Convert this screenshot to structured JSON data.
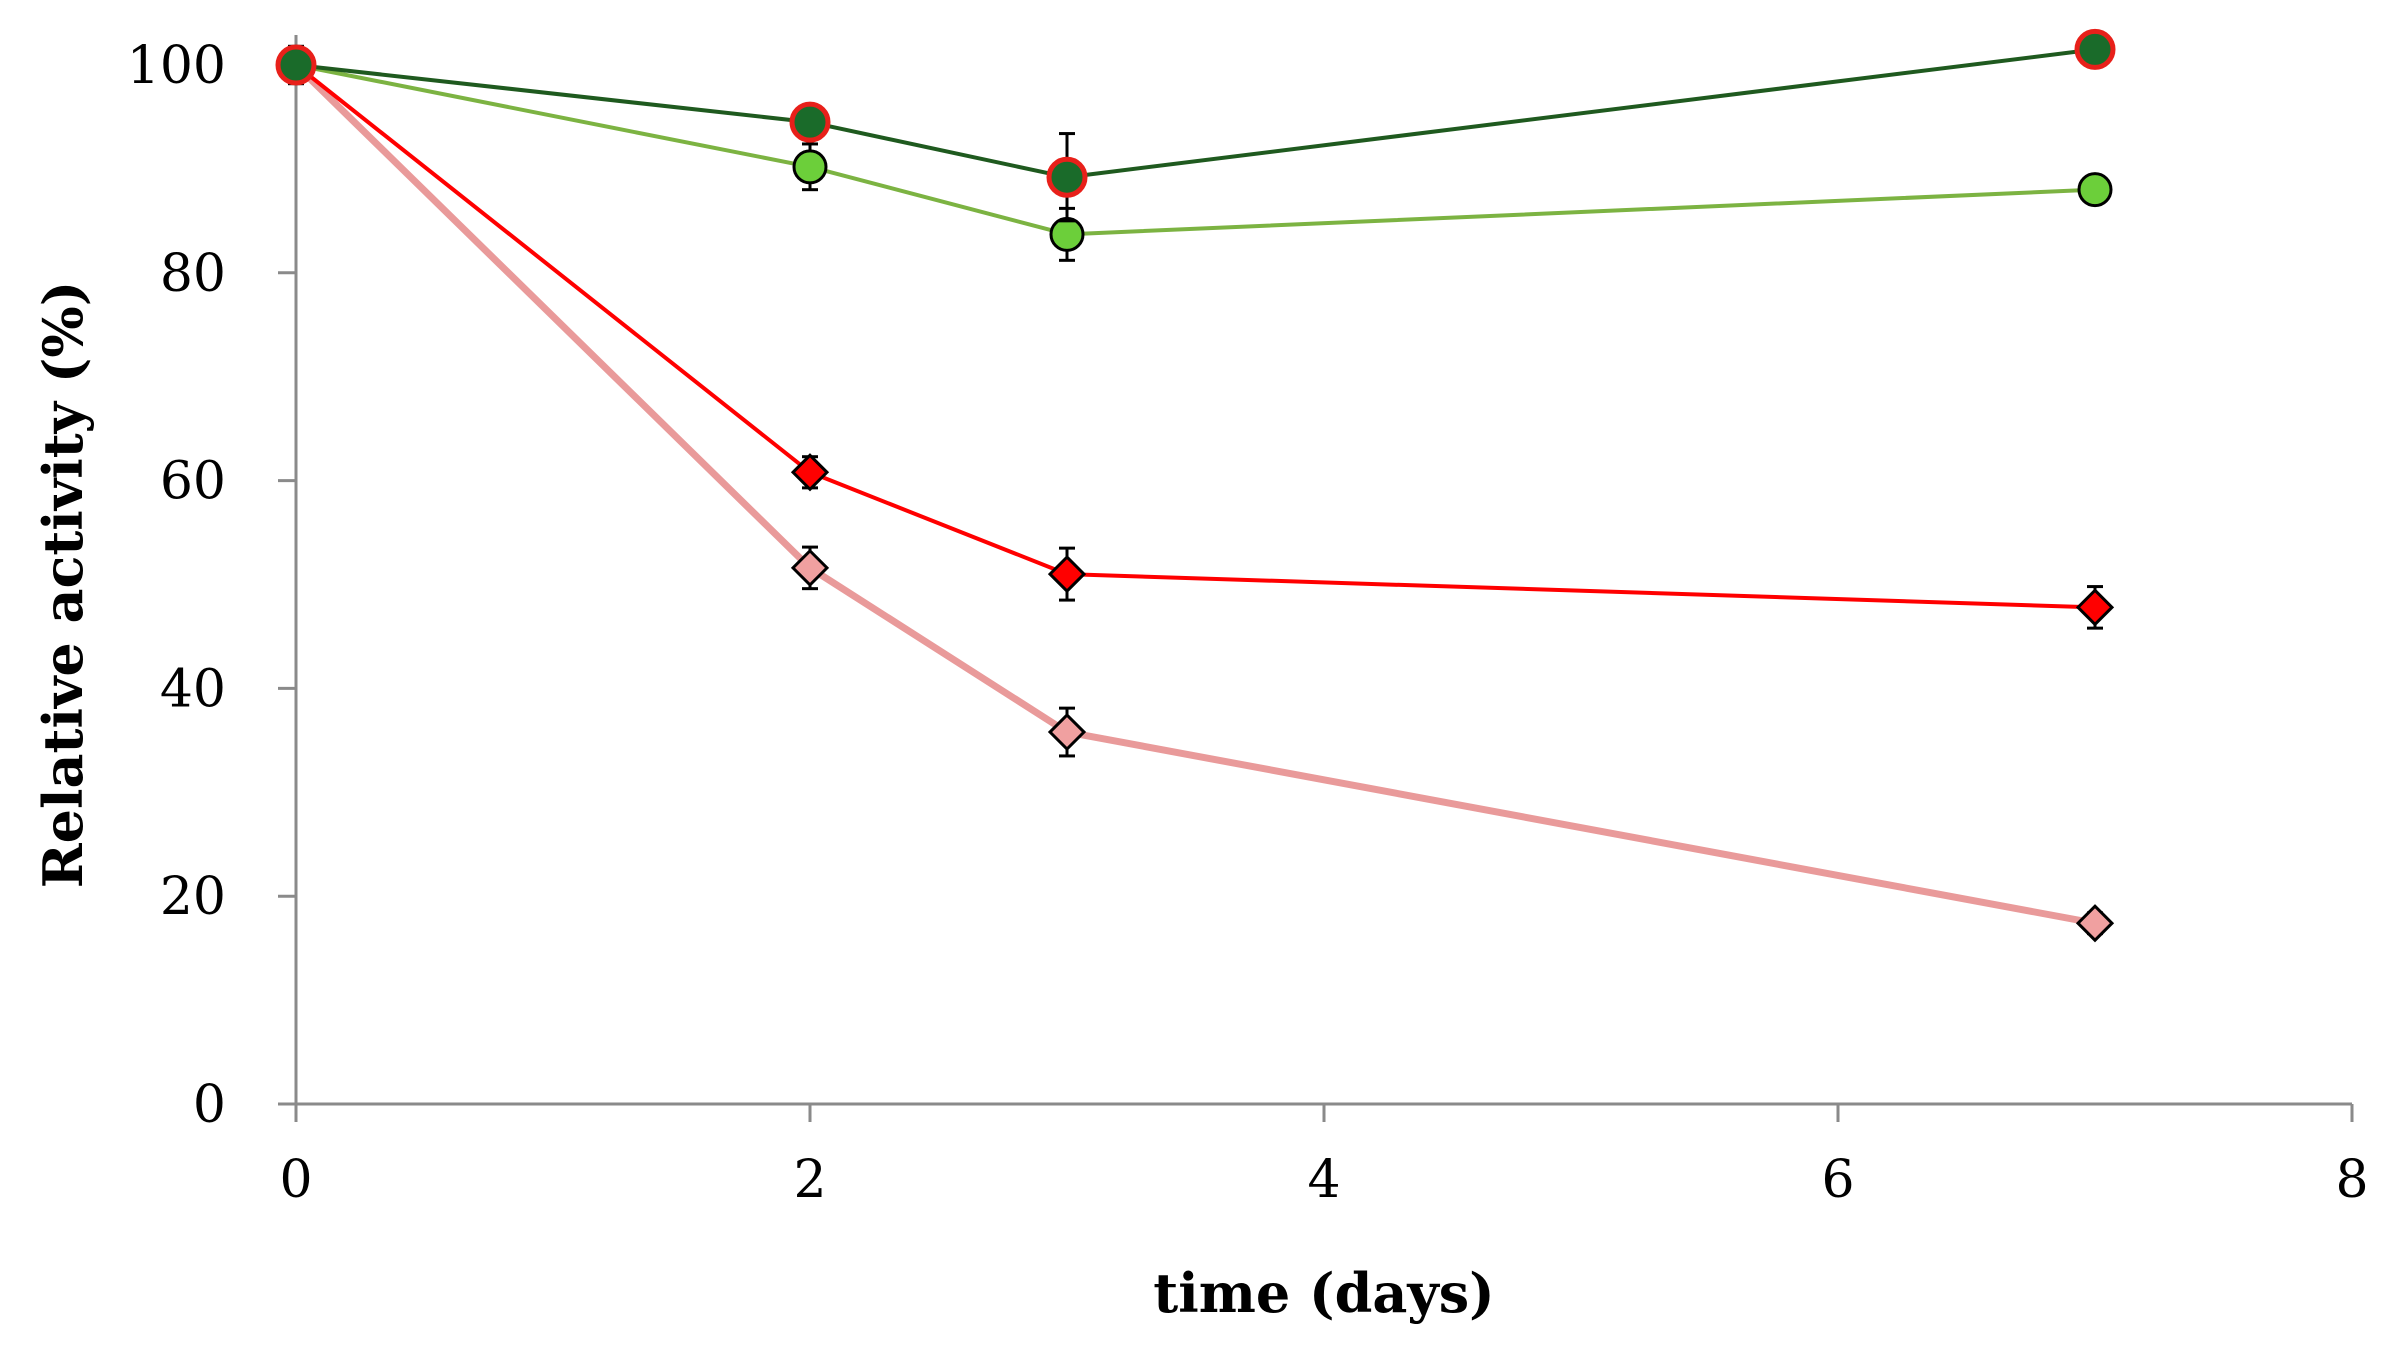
{
  "chart_data": {
    "type": "line",
    "title": "",
    "xlabel": "time (days)",
    "ylabel": "Relative activity (%)",
    "xlim": [
      0,
      8
    ],
    "ylim": [
      0,
      100
    ],
    "x_ticks": [
      0,
      2,
      4,
      6,
      8
    ],
    "y_ticks": [
      0,
      20,
      40,
      60,
      80,
      100
    ],
    "x_tick_labels": [
      "0",
      "2",
      "4",
      "6",
      "8"
    ],
    "y_tick_labels": [
      "0",
      "20",
      "40",
      "60",
      "80",
      "100"
    ],
    "grid": false,
    "legend": "none",
    "series": [
      {
        "name": "dark green circles",
        "marker": "circle",
        "line_color": "#1f5a1f",
        "marker_fill": "#1a6b2a",
        "marker_edge": "#e8201a",
        "x": [
          0,
          2,
          3,
          7
        ],
        "y": [
          100,
          94.5,
          89.2,
          101.5
        ],
        "err": [
          1.8,
          1.2,
          4.2,
          1.5
        ]
      },
      {
        "name": "light green circles",
        "marker": "circle",
        "line_color": "#7cb342",
        "marker_fill": "#6ccf3a",
        "marker_edge": "#000000",
        "x": [
          0,
          2,
          3,
          7
        ],
        "y": [
          100,
          90.2,
          83.7,
          88.0
        ],
        "err": [
          1.5,
          2.2,
          2.5,
          0.8
        ]
      },
      {
        "name": "red diamonds",
        "marker": "diamond",
        "line_color": "#ff0000",
        "marker_fill": "#ff0000",
        "marker_edge": "#000000",
        "x": [
          0,
          2,
          3,
          7
        ],
        "y": [
          100,
          60.8,
          51.0,
          47.8
        ],
        "err": [
          1.0,
          1.5,
          2.5,
          2.0
        ]
      },
      {
        "name": "pink diamonds",
        "marker": "diamond",
        "line_color": "#e99a9a",
        "marker_fill": "#f0a0a0",
        "marker_edge": "#000000",
        "x": [
          0,
          2,
          3,
          7
        ],
        "y": [
          100,
          51.6,
          35.8,
          17.4
        ],
        "err": [
          1.0,
          2.0,
          2.3,
          1.0
        ]
      }
    ]
  }
}
